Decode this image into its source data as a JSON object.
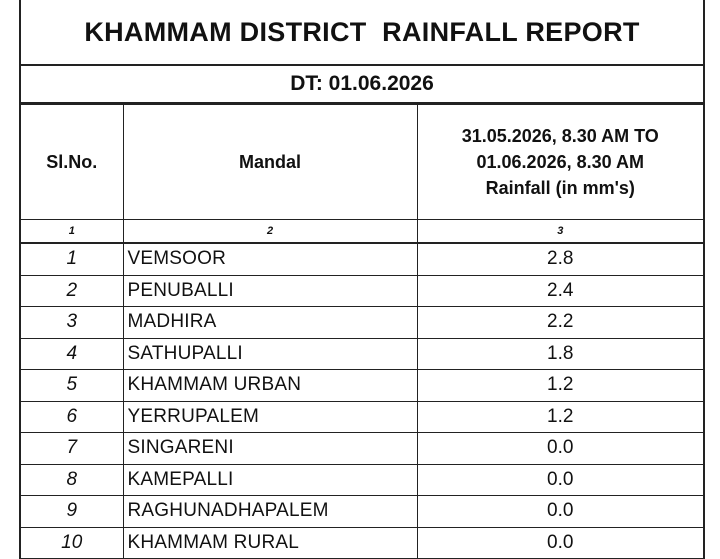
{
  "report": {
    "title": "KHAMMAM DISTRICT  RAINFALL REPORT",
    "date": "DT: 01.06.2026"
  },
  "table": {
    "headers": {
      "slno": "Sl.No.",
      "mandal": "Mandal",
      "rainfall_line1": "31.05.2026, 8.30 AM TO",
      "rainfall_line2": "01.06.2026, 8.30 AM",
      "rainfall_line3": "Rainfall (in mm's)"
    },
    "column_numbers": [
      "1",
      "2",
      "3"
    ],
    "rows": [
      {
        "slno": "1",
        "mandal": "VEMSOOR",
        "rainfall": "2.8"
      },
      {
        "slno": "2",
        "mandal": "PENUBALLI",
        "rainfall": "2.4"
      },
      {
        "slno": "3",
        "mandal": "MADHIRA",
        "rainfall": "2.2"
      },
      {
        "slno": "4",
        "mandal": "SATHUPALLI",
        "rainfall": "1.8"
      },
      {
        "slno": "5",
        "mandal": "KHAMMAM URBAN",
        "rainfall": "1.2"
      },
      {
        "slno": "6",
        "mandal": "YERRUPALEM",
        "rainfall": "1.2"
      },
      {
        "slno": "7",
        "mandal": "SINGARENI",
        "rainfall": "0.0"
      },
      {
        "slno": "8",
        "mandal": "KAMEPALLI",
        "rainfall": "0.0"
      },
      {
        "slno": "9",
        "mandal": "RAGHUNADHAPALEM",
        "rainfall": "0.0"
      },
      {
        "slno": "10",
        "mandal": "KHAMMAM RURAL",
        "rainfall": "0.0"
      }
    ]
  }
}
